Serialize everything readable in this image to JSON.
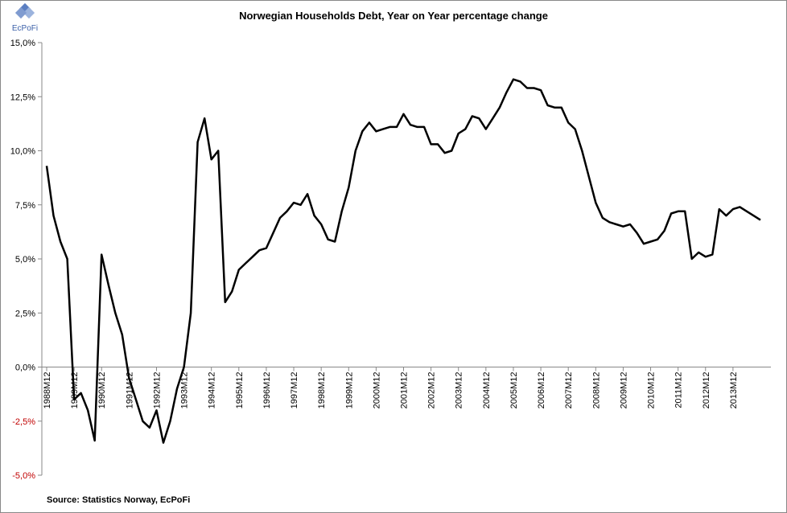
{
  "chart_data": {
    "type": "line",
    "title": "Norwegian Households Debt, Year on Year percentage change",
    "logo": "EcPoFi",
    "source": "Source: Statistics  Norway, EcPoFi",
    "categories": [
      "1988M12",
      null,
      null,
      null,
      "1989M12",
      null,
      null,
      null,
      "1990M12",
      null,
      null,
      null,
      "1991M12",
      null,
      null,
      null,
      "1992M12",
      null,
      null,
      null,
      "1993M12",
      null,
      null,
      null,
      "1994M12",
      null,
      null,
      null,
      "1995M12",
      null,
      null,
      null,
      "1996M12",
      null,
      null,
      null,
      "1997M12",
      null,
      null,
      null,
      "1998M12",
      null,
      null,
      null,
      "1999M12",
      null,
      null,
      null,
      "2000M12",
      null,
      null,
      null,
      "2001M12",
      null,
      null,
      null,
      "2002M12",
      null,
      null,
      null,
      "2003M12",
      null,
      null,
      null,
      "2004M12",
      null,
      null,
      null,
      "2005M12",
      null,
      null,
      null,
      "2006M12",
      null,
      null,
      null,
      "2007M12",
      null,
      null,
      null,
      "2008M12",
      null,
      null,
      null,
      "2009M12",
      null,
      null,
      null,
      "2010M12",
      null,
      null,
      null,
      "2011M12",
      null,
      null,
      null,
      "2012M12",
      null,
      null,
      null,
      "2013M12",
      null,
      null,
      null,
      null
    ],
    "series": [
      {
        "name": "Households debt",
        "color": "#000000",
        "values": [
          9.3,
          7.0,
          5.8,
          5.0,
          -1.5,
          -1.2,
          -2.0,
          -3.4,
          5.2,
          3.8,
          2.5,
          1.5,
          -0.5,
          -1.5,
          -2.5,
          -2.8,
          -2.0,
          -3.5,
          -2.5,
          -1.0,
          0.0,
          2.5,
          10.4,
          11.5,
          9.6,
          10.0,
          3.0,
          3.5,
          4.5,
          4.8,
          5.1,
          5.4,
          5.5,
          6.2,
          6.9,
          7.2,
          7.6,
          7.5,
          8.0,
          7.0,
          6.6,
          5.9,
          5.8,
          7.2,
          8.3,
          10.0,
          10.9,
          11.3,
          10.9,
          11.0,
          11.1,
          11.1,
          11.7,
          11.2,
          11.1,
          11.1,
          10.3,
          10.3,
          9.9,
          10.0,
          10.8,
          11.0,
          11.6,
          11.5,
          11.0,
          11.5,
          12.0,
          12.7,
          13.3,
          13.2,
          12.9,
          12.9,
          12.8,
          12.1,
          12.0,
          12.0,
          11.3,
          11.0,
          10.0,
          8.8,
          7.6,
          6.9,
          6.7,
          6.6,
          6.5,
          6.6,
          6.2,
          5.7,
          5.8,
          5.9,
          6.3,
          7.1,
          7.2,
          7.2,
          5.0,
          5.3,
          5.1,
          5.2,
          7.3,
          7.0,
          7.3,
          7.4,
          7.2,
          7.0,
          6.8
        ]
      }
    ],
    "ylim": [
      -5,
      15
    ],
    "yticks": [
      {
        "value": -5,
        "label": "-5,0%"
      },
      {
        "value": -2.5,
        "label": "-2,5%"
      },
      {
        "value": 0,
        "label": "0,0%"
      },
      {
        "value": 2.5,
        "label": "2,5%"
      },
      {
        "value": 5,
        "label": "5,0%"
      },
      {
        "value": 7.5,
        "label": "7,5%"
      },
      {
        "value": 10,
        "label": "10,0%"
      },
      {
        "value": 12.5,
        "label": "12,5%"
      },
      {
        "value": 15,
        "label": "15,0%"
      }
    ],
    "negative_tick_color": "#c00000",
    "grid": false,
    "legend": false
  }
}
